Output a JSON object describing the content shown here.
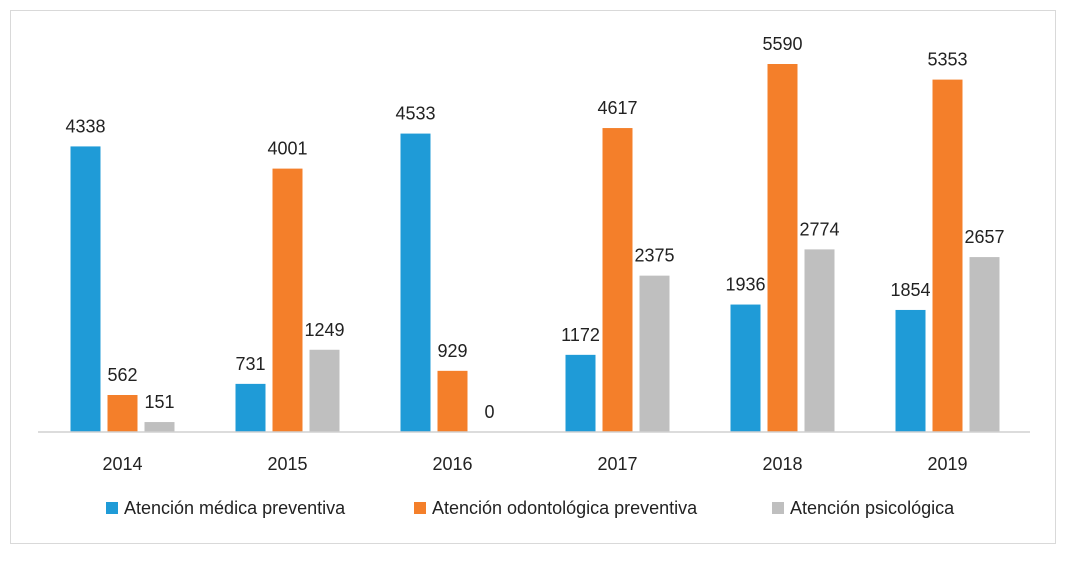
{
  "chart_data": {
    "type": "bar",
    "categories": [
      "2014",
      "2015",
      "2016",
      "2017",
      "2018",
      "2019"
    ],
    "series": [
      {
        "name": "Atención médica preventiva",
        "color": "#1f9bd7",
        "values": [
          4338,
          731,
          4533,
          1172,
          1936,
          1854
        ]
      },
      {
        "name": "Atención odontológica preventiva",
        "color": "#f47f2a",
        "values": [
          562,
          4001,
          929,
          4617,
          5590,
          5353
        ]
      },
      {
        "name": "Atención psicológica",
        "color": "#bfbfbf",
        "values": [
          151,
          1249,
          0,
          2375,
          2774,
          2657
        ]
      }
    ],
    "ylim": [
      0,
      6000
    ],
    "grid": false,
    "legend_position": "bottom",
    "data_labels": true
  }
}
